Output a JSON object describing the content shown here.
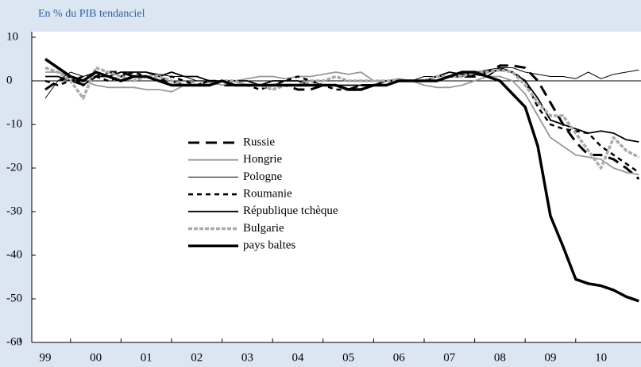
{
  "chart_data": {
    "type": "line",
    "subtitle": "En % du PIB tendanciel",
    "categories": [
      "99",
      null,
      null,
      null,
      "00",
      null,
      null,
      null,
      "01",
      null,
      null,
      null,
      "02",
      null,
      null,
      null,
      "03",
      null,
      null,
      null,
      "04",
      null,
      null,
      null,
      "05",
      null,
      null,
      null,
      "06",
      null,
      null,
      null,
      "07",
      null,
      null,
      null,
      "08",
      null,
      null,
      null,
      "09",
      null,
      null,
      null,
      "10",
      null,
      null,
      null
    ],
    "ylim": [
      -60,
      10
    ],
    "yticks": [
      -60,
      -50,
      -40,
      -30,
      -20,
      -10,
      0,
      10
    ],
    "legend": "inside",
    "series": [
      {
        "name": "Russie",
        "color": "#000000",
        "style": "long-dash",
        "values": [
          -2,
          0,
          1,
          -1,
          1,
          2,
          2,
          1,
          1,
          0,
          0,
          -1,
          -1,
          0,
          -1,
          -1,
          -1,
          -1,
          -1,
          -1,
          -2,
          -2,
          -1,
          -1,
          -2,
          -1,
          -1,
          -1,
          0,
          0,
          0,
          0,
          1,
          1,
          1,
          2,
          3.5,
          3.5,
          3,
          0,
          -5,
          -10,
          -14,
          -17,
          -17,
          -18,
          -20,
          -22.5
        ]
      },
      {
        "name": "Hongrie",
        "color": "#999999",
        "style": "solid-medium",
        "values": [
          2,
          2,
          1,
          0,
          -1,
          -1.5,
          -1.5,
          -1.5,
          -2,
          -2,
          -2.5,
          -1,
          0,
          0,
          -1,
          0,
          0.5,
          1,
          1,
          0.5,
          1,
          1,
          1.5,
          2,
          1.5,
          2,
          0,
          0,
          0.5,
          0,
          -1,
          -1.5,
          -1.5,
          -1,
          0,
          1,
          1,
          0,
          -3,
          -8,
          -13,
          -15,
          -17,
          -17.5,
          -18,
          -20,
          -21,
          -21.5
        ]
      },
      {
        "name": "Pologne",
        "color": "#000000",
        "style": "solid-thin",
        "values": [
          -4,
          0,
          2,
          1,
          2,
          1,
          2,
          2,
          2,
          1.5,
          1,
          1,
          0,
          0,
          0,
          0,
          -1,
          -1,
          -1,
          0,
          0,
          0,
          -1,
          -1,
          -1,
          -1,
          -1,
          0,
          0,
          0,
          1,
          1,
          1,
          1,
          2,
          2.5,
          3,
          3,
          2,
          1.5,
          1,
          1,
          0.5,
          2,
          0.5,
          1.5,
          2,
          2.5
        ]
      },
      {
        "name": "Roumanie",
        "color": "#000000",
        "style": "dash",
        "values": [
          0,
          -1,
          0,
          1,
          1,
          0,
          1,
          2,
          1,
          0,
          1,
          0,
          -1,
          0,
          0,
          -1,
          -1,
          -2,
          -1,
          0,
          1,
          0,
          -1,
          -2,
          -2,
          -1,
          -1,
          0,
          0,
          0,
          0,
          0,
          1,
          1,
          2,
          2,
          2.5,
          2,
          0,
          -6,
          -10,
          -11,
          -11.5,
          -12,
          -15,
          -17,
          -19,
          -21
        ]
      },
      {
        "name": "République tchèque",
        "color": "#000000",
        "style": "solid-medium",
        "values": [
          1,
          1,
          0,
          -1,
          1,
          1,
          2,
          2,
          2,
          1,
          2,
          1,
          1,
          0,
          0,
          0,
          0,
          -1,
          0,
          0,
          0,
          -1,
          -1,
          -1,
          -1,
          -1,
          -1,
          0,
          0,
          0,
          0,
          1,
          2,
          1.5,
          1.5,
          1,
          3,
          2,
          0,
          -4,
          -9,
          -10,
          -11,
          -12,
          -11.5,
          -12,
          -13.5,
          -14
        ]
      },
      {
        "name": "Bulgarie",
        "color": "#aaaaaa",
        "style": "short-dash",
        "values": [
          3,
          2,
          0,
          -4,
          3,
          2,
          1,
          0,
          1,
          1,
          0,
          -1,
          -1,
          -1,
          0,
          0,
          -1,
          -1,
          -2,
          -1,
          -1,
          0,
          0,
          1,
          0,
          0,
          0,
          0,
          0,
          0,
          0,
          1,
          1,
          1,
          2,
          2,
          2.5,
          2,
          -1,
          -5,
          -8,
          -8,
          -12,
          -16,
          -20,
          -13,
          -16,
          -17.5
        ]
      },
      {
        "name": "pays baltes",
        "color": "#000000",
        "style": "solid-thick",
        "values": [
          5,
          3,
          1,
          0,
          2,
          1,
          0,
          1,
          1,
          0,
          -1,
          -1,
          -1,
          -1,
          0,
          -1,
          -1,
          -1,
          -1,
          -1,
          -1,
          -1,
          -1,
          -1,
          -2,
          -2,
          -1,
          -1,
          0,
          0,
          0,
          0,
          1,
          2,
          2,
          1,
          0,
          -3,
          -6,
          -15,
          -31,
          -38,
          -45.5,
          -46.5,
          -47,
          -48,
          -49.5,
          -50.5
        ]
      }
    ]
  }
}
